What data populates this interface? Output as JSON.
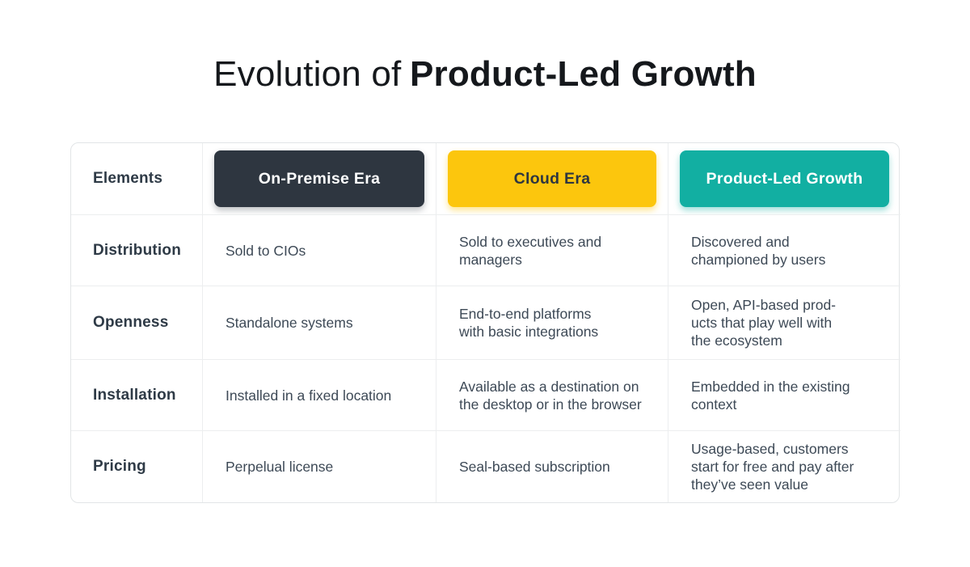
{
  "title": {
    "regular": "Evolution of",
    "bold": "Product-Led Growth"
  },
  "colors": {
    "on_premise_badge_bg": "#2E3640",
    "on_premise_badge_text": "#FFFFFF",
    "cloud_badge_bg": "#FCC60D",
    "cloud_badge_text": "#2E3640",
    "plg_badge_bg": "#12AFA2",
    "plg_badge_text": "#FFFFFF",
    "grid_line": "#ECEEEF",
    "body_text": "#3D4956",
    "label_text": "#2E3A46"
  },
  "chart_data": {
    "type": "table",
    "title": "Evolution of Product-Led Growth",
    "corner_header": "Elements",
    "era_columns": [
      {
        "label": "On-Premise Era"
      },
      {
        "label": "Cloud Era"
      },
      {
        "label": "Product-Led Growth"
      }
    ],
    "rows": [
      {
        "label": "Distribution",
        "cells": [
          "Sold to CIOs",
          "Sold to executives and\nmanagers",
          "Discovered and\nchampioned by users"
        ]
      },
      {
        "label": "Openness",
        "cells": [
          "Standalone systems",
          "End-to-end platforms\nwith basic integrations",
          "Open, API-based prod-\nucts that play well with\nthe ecosystem"
        ]
      },
      {
        "label": "Installation",
        "cells": [
          "Installed in a fixed location",
          "Available as a destination on\nthe desktop or in the browser",
          "Embedded in the existing\ncontext"
        ]
      },
      {
        "label": "Pricing",
        "cells": [
          "Perpelual license",
          "Seal-based subscription",
          "Usage-based, customers\nstart for free and pay after\nthey’ve seen value"
        ]
      }
    ]
  }
}
